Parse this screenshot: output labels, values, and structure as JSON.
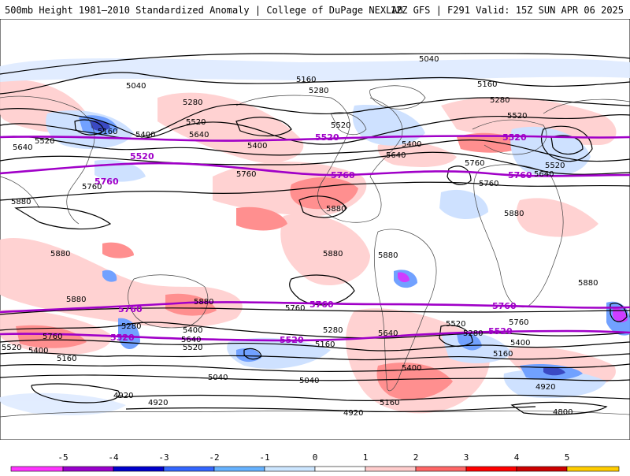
{
  "header": {
    "left_title": "500mb Height 1981–2010 Standardized Anomaly | College of DuPage NEXLAB",
    "right_info": "12Z GFS | F291 Valid: 15Z SUN APR 06 2025"
  },
  "map": {
    "projection": "equirectangular",
    "lon_range": [
      -180,
      180
    ],
    "lat_range": [
      -90,
      90
    ],
    "purple_contour_labels": [
      "5520",
      "5760"
    ],
    "black_contour_labels": [
      "5040",
      "5160",
      "5280",
      "5400",
      "5520",
      "5640",
      "5760",
      "5880",
      "4920",
      "4800"
    ],
    "colors": {
      "purple": "#a000c8",
      "black": "#000000",
      "positive_anomaly": [
        "#ffc8c8",
        "#ff8c8c",
        "#ff5050"
      ],
      "negative_anomaly": [
        "#c8dcff",
        "#6496ff",
        "#3050d0"
      ]
    }
  },
  "colorbar": {
    "ticks": [
      "-5",
      "-4",
      "-3",
      "-2",
      "-1",
      "0",
      "1",
      "2",
      "3",
      "4",
      "5"
    ],
    "colors": [
      "#ff33ff",
      "#9900cc",
      "#0000cc",
      "#3366ff",
      "#66b2ff",
      "#cce6ff",
      "#ffffff",
      "#ffcccc",
      "#ff6666",
      "#ff0000",
      "#cc0000",
      "#ffcc00"
    ]
  }
}
